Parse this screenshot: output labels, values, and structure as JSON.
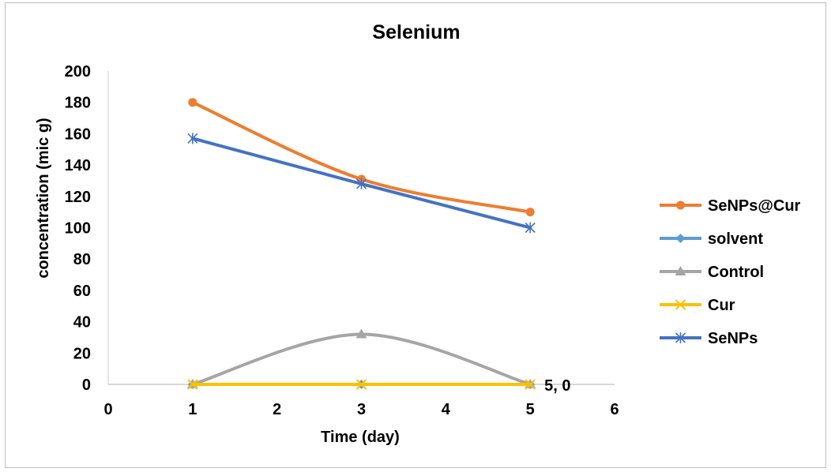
{
  "chart_data": {
    "type": "line",
    "title": "Selenium",
    "xlabel": "Time (day)",
    "ylabel": "concentration (mic g)",
    "xlim": [
      0,
      6
    ],
    "ylim": [
      0,
      200
    ],
    "x_ticks": [
      0,
      1,
      2,
      3,
      4,
      5,
      6
    ],
    "y_ticks": [
      0,
      20,
      40,
      60,
      80,
      100,
      120,
      140,
      160,
      180,
      200
    ],
    "grid": false,
    "legend_position": "right",
    "series": [
      {
        "name": "SeNPs@Cur",
        "color": "#ED7D31",
        "marker": "circle",
        "smooth": true,
        "x": [
          1,
          3,
          5
        ],
        "y": [
          180,
          131,
          110
        ]
      },
      {
        "name": "solvent",
        "color": "#5B9BD5",
        "marker": "diamond",
        "smooth": false,
        "x": [
          1,
          3,
          5
        ],
        "y": [
          0,
          0,
          0
        ]
      },
      {
        "name": "Control",
        "color": "#A5A5A5",
        "marker": "triangle",
        "smooth": true,
        "x": [
          1,
          3,
          5
        ],
        "y": [
          0,
          32,
          0
        ]
      },
      {
        "name": "Cur",
        "color": "#FFC000",
        "marker": "x",
        "smooth": false,
        "x": [
          1,
          3,
          5
        ],
        "y": [
          0,
          0,
          0
        ]
      },
      {
        "name": "SeNPs",
        "color": "#4472C4",
        "marker": "star",
        "smooth": false,
        "x": [
          1,
          3,
          5
        ],
        "y": [
          157,
          128,
          100
        ]
      }
    ],
    "annotations": [
      {
        "text": "5, 0",
        "x": 5,
        "y": 0
      }
    ]
  }
}
